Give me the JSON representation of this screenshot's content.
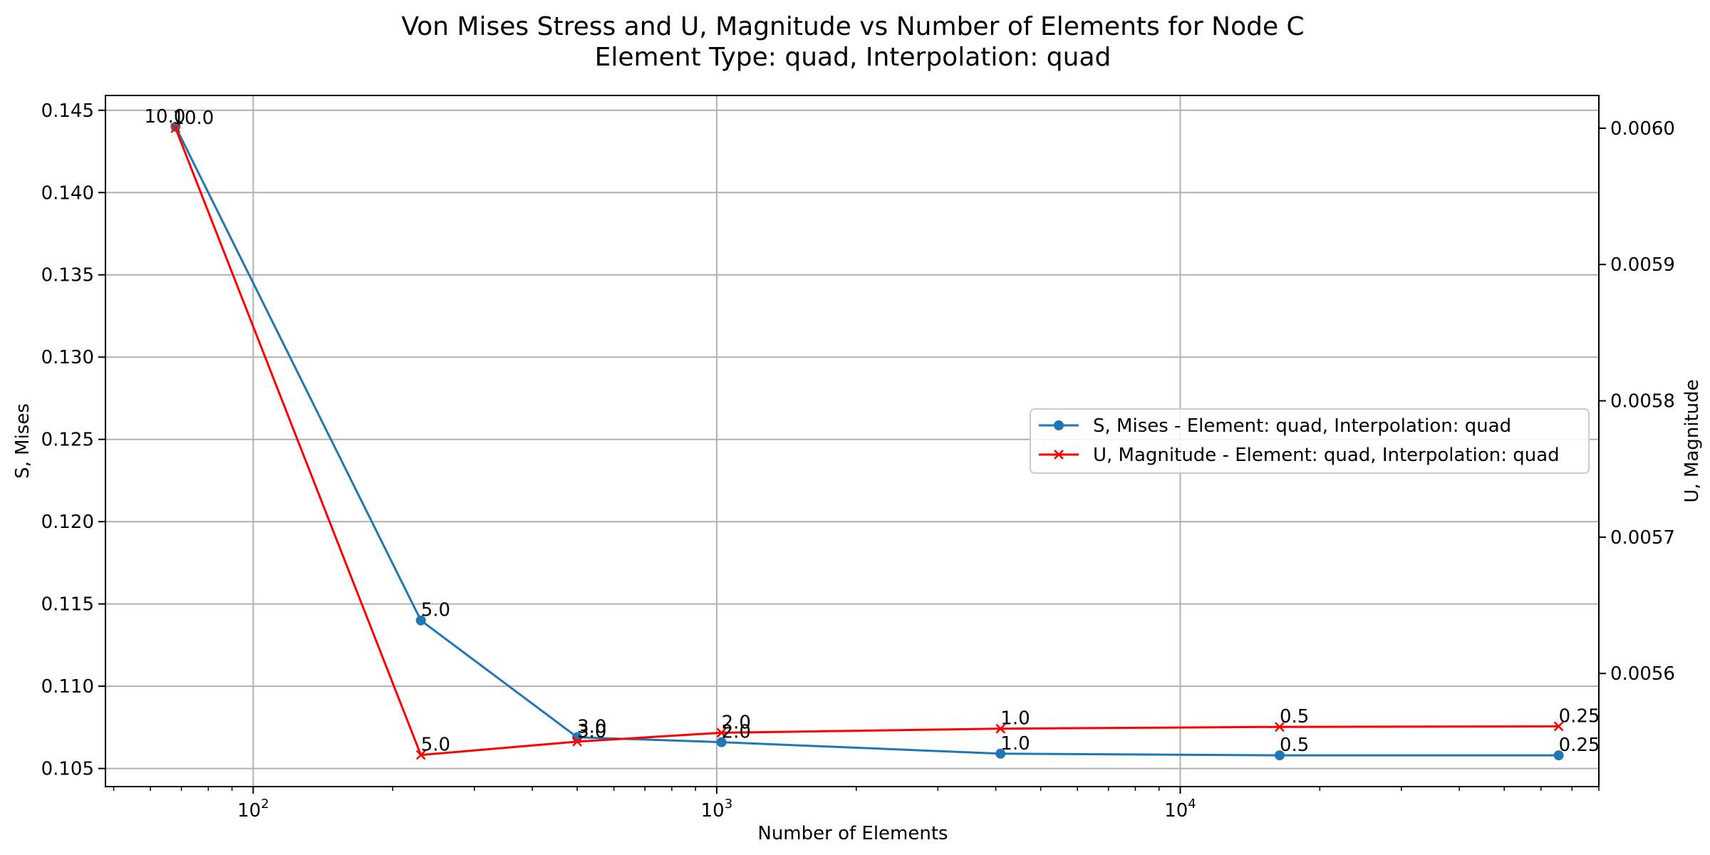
{
  "chart_data": {
    "type": "line",
    "title_lines": [
      "Von Mises Stress and U, Magnitude vs Number of Elements for Node C",
      "Element Type: quad, Interpolation: quad"
    ],
    "xlabel": "Number of Elements",
    "ylabel_left": "S, Mises",
    "ylabel_right": "U, Magnitude",
    "x_scale": "log",
    "xlim": [
      48,
      80000
    ],
    "x_ticks": [
      {
        "base": "10",
        "exp": "2",
        "value": 100
      },
      {
        "base": "10",
        "exp": "3",
        "value": 1000
      },
      {
        "base": "10",
        "exp": "4",
        "value": 10000
      }
    ],
    "ylim_left": [
      0.1039,
      0.1459
    ],
    "ylim_right": [
      0.005517,
      0.006024
    ],
    "y_ticks_left": [
      "0.105",
      "0.110",
      "0.115",
      "0.120",
      "0.125",
      "0.130",
      "0.135",
      "0.140",
      "0.145"
    ],
    "y_ticks_right": [
      "0.0056",
      "0.0057",
      "0.0058",
      "0.0059",
      "0.0060"
    ],
    "grid": true,
    "legend_position": "center-right",
    "series": [
      {
        "name": "S, Mises - Element: quad, Interpolation: quad",
        "axis": "left",
        "color": "#1f77b4",
        "marker": "circle",
        "x": [
          68,
          230,
          500,
          1024,
          4096,
          16384,
          65536
        ],
        "y": [
          0.144,
          0.114,
          0.1069,
          0.1066,
          0.1059,
          0.1058,
          0.1058
        ],
        "labels": [
          "10.0",
          "5.0",
          "3.0",
          "2.0",
          "1.0",
          "0.5",
          "0.25"
        ]
      },
      {
        "name": "U, Magnitude - Element: quad, Interpolation: quad",
        "axis": "right",
        "color": "#ff0000",
        "marker": "x",
        "x": [
          68,
          230,
          500,
          1024,
          4096,
          16384,
          65536
        ],
        "y": [
          0.006,
          0.0055402,
          0.00555,
          0.0055565,
          0.0055595,
          0.0055608,
          0.0055612
        ],
        "labels": [
          "10.0",
          "5.0",
          "3.0",
          "2.0",
          "1.0",
          "0.5",
          "0.25"
        ]
      }
    ]
  }
}
